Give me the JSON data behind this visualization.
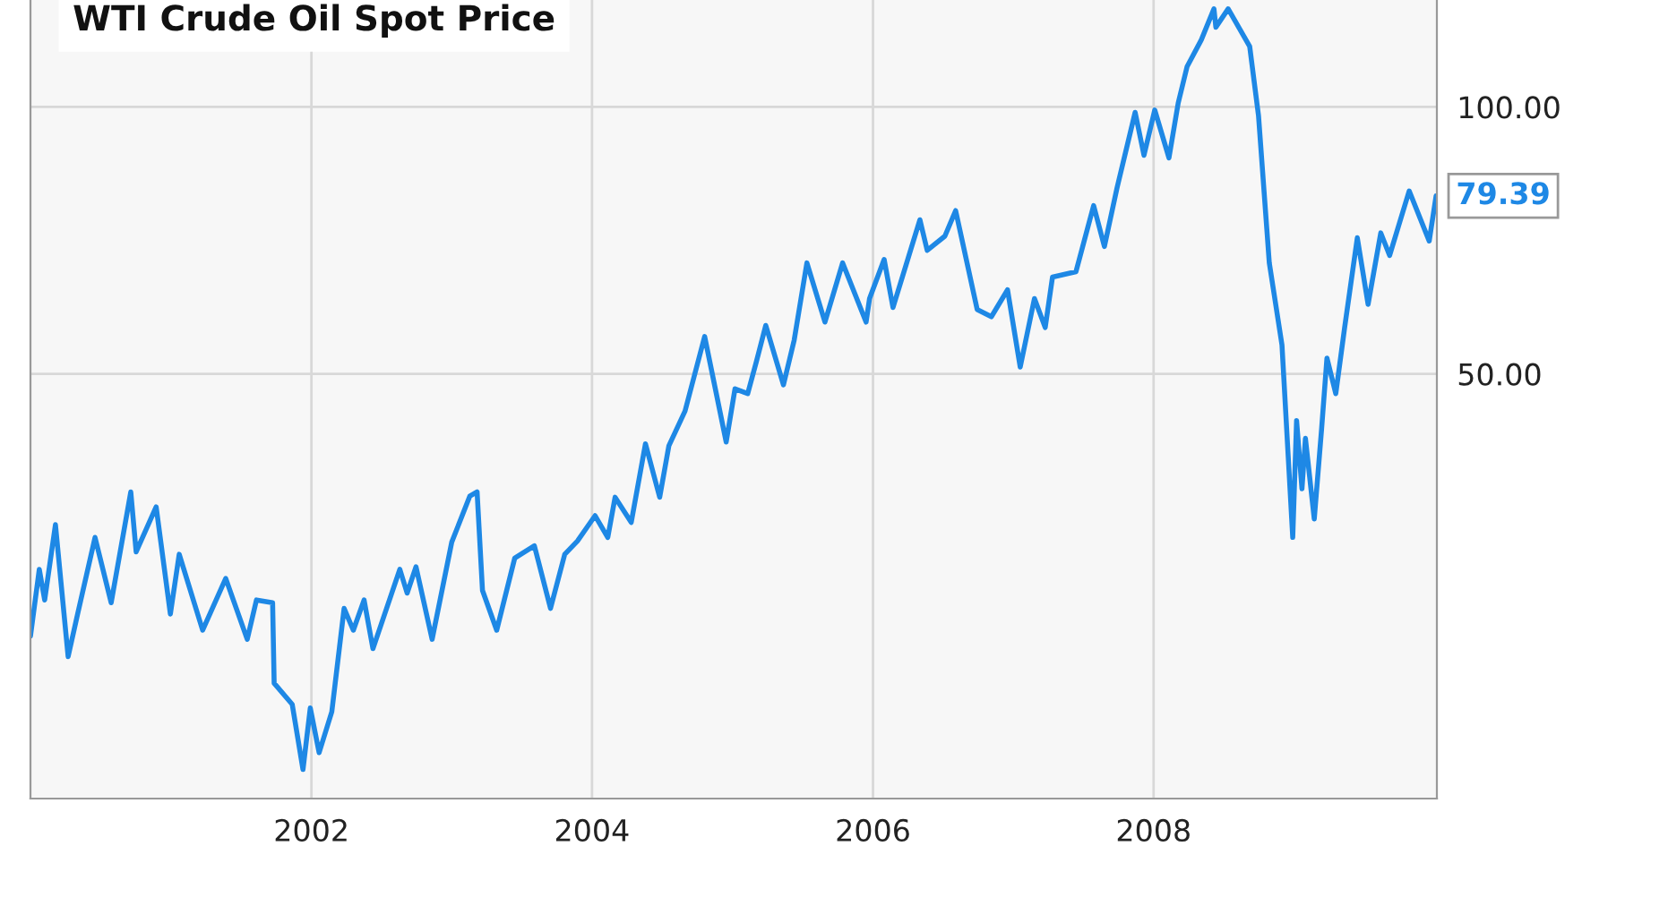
{
  "chart_data": {
    "type": "line",
    "title": "WTI Crude Oil Spot Price",
    "log": "y",
    "grid": true,
    "marker": "none",
    "line_style": "solid",
    "xlim": [
      "2000-01-01",
      "2010-01-07"
    ],
    "xticks": [
      "2002",
      "2004",
      "2006",
      "2008"
    ],
    "ylim": [
      16.6,
      132
    ],
    "yticks": [
      {
        "value": 50,
        "label": "50.00"
      },
      {
        "value": 100,
        "label": "100.00"
      }
    ],
    "annotations": [
      {
        "text": "79.39",
        "x": "2010-01-05",
        "y": 79.39
      }
    ],
    "series": [
      {
        "color": "#1e88e5",
        "x": [
          "2000-01-01",
          "2000-01-24",
          "2000-02-07",
          "2000-03-06",
          "2000-04-08",
          "2000-05-01",
          "2000-06-17",
          "2000-07-29",
          "2000-09-18",
          "2000-10-02",
          "2000-11-23",
          "2000-12-30",
          "2001-01-22",
          "2001-03-24",
          "2001-05-23",
          "2001-07-18",
          "2001-08-11",
          "2001-09-22",
          "2001-09-26",
          "2001-11-12",
          "2001-12-10",
          "2001-12-29",
          "2002-01-21",
          "2002-02-23",
          "2002-03-27",
          "2002-04-20",
          "2002-05-18",
          "2002-06-10",
          "2002-08-19",
          "2002-09-07",
          "2002-09-30",
          "2002-11-11",
          "2003-01-01",
          "2003-02-17",
          "2003-03-08",
          "2003-03-22",
          "2003-04-28",
          "2003-06-14",
          "2003-08-04",
          "2003-09-15",
          "2003-10-22",
          "2003-11-24",
          "2004-01-09",
          "2004-02-11",
          "2004-03-01",
          "2004-04-12",
          "2004-05-19",
          "2004-06-25",
          "2004-07-19",
          "2004-08-30",
          "2004-10-20",
          "2004-12-15",
          "2005-01-07",
          "2005-02-09",
          "2005-03-04",
          "2005-03-28",
          "2005-05-13",
          "2005-06-10",
          "2005-07-13",
          "2005-08-29",
          "2005-10-14",
          "2005-12-14",
          "2005-12-23",
          "2006-01-30",
          "2006-02-22",
          "2006-05-03",
          "2006-05-22",
          "2006-07-07",
          "2006-08-04",
          "2006-09-29",
          "2006-11-05",
          "2006-12-17",
          "2007-01-19",
          "2007-02-25",
          "2007-03-25",
          "2007-04-13",
          "2007-06-13",
          "2007-07-29",
          "2007-08-26",
          "2007-09-28",
          "2007-11-14",
          "2007-12-07",
          "2008-01-04",
          "2008-02-10",
          "2008-03-05",
          "2008-03-28",
          "2008-05-04",
          "2008-06-06",
          "2008-06-11",
          "2008-07-13",
          "2008-09-07",
          "2008-09-30",
          "2008-10-28",
          "2008-11-30",
          "2008-12-28",
          "2009-01-07",
          "2009-01-21",
          "2009-01-30",
          "2009-02-22",
          "2009-03-13",
          "2009-03-27",
          "2009-04-19",
          "2009-05-12",
          "2009-06-14",
          "2009-07-12",
          "2009-08-14",
          "2009-09-06",
          "2009-10-27",
          "2009-12-18",
          "2010-01-05"
        ],
        "values": [
          25.3,
          30.1,
          27.8,
          33.8,
          24.0,
          26.6,
          32.7,
          27.6,
          36.8,
          31.5,
          35.4,
          26.8,
          31.3,
          25.7,
          29.4,
          25.1,
          27.8,
          27.6,
          22.4,
          21.2,
          17.9,
          21.0,
          18.7,
          20.8,
          27.2,
          25.7,
          27.8,
          24.5,
          30.1,
          28.3,
          30.3,
          25.1,
          32.3,
          36.4,
          36.8,
          28.5,
          25.7,
          31.0,
          32.0,
          27.2,
          31.3,
          32.4,
          34.6,
          32.7,
          36.3,
          34.0,
          41.7,
          36.3,
          41.5,
          45.4,
          55.1,
          41.9,
          48.1,
          47.5,
          51.7,
          56.7,
          48.6,
          54.6,
          66.7,
          57.2,
          66.7,
          57.2,
          60.8,
          67.3,
          59.4,
          74.6,
          68.9,
          71.5,
          76.4,
          59.1,
          58.0,
          62.2,
          50.9,
          60.8,
          56.4,
          64.3,
          65.2,
          77.4,
          69.6,
          81.1,
          98.6,
          88.2,
          99.2,
          87.6,
          101,
          111,
          119,
          129,
          123,
          129,
          117,
          97.7,
          66.7,
          53.9,
          32.7,
          44.3,
          37.1,
          42.3,
          34.3,
          43.3,
          52.1,
          47.5,
          56.4,
          71.2,
          59.9,
          72.1,
          68.0,
          80.4,
          70.6,
          79.39
        ]
      }
    ]
  }
}
